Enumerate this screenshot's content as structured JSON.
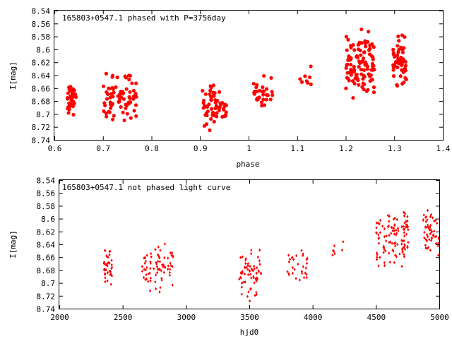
{
  "chart_data": [
    {
      "type": "scatter",
      "title": "165803+0547.1 phased with P=3756day",
      "xlabel": "phase",
      "ylabel": "I[mag]",
      "xlim": [
        0.6,
        1.4
      ],
      "ylim": [
        8.54,
        8.74
      ],
      "y_inverted": true,
      "xticks": [
        "0.6",
        "0.7",
        "0.8",
        "0.9",
        "1",
        "1.1",
        "1.2",
        "1.3",
        "1.4"
      ],
      "yticks": [
        "8.54",
        "8.56",
        "8.58",
        "8.6",
        "8.62",
        "8.64",
        "8.66",
        "8.68",
        "8.7",
        "8.72",
        "8.74"
      ],
      "color": "#ff0000",
      "marker": "filled-circle",
      "clusters": [
        {
          "x_range": [
            0.625,
            0.645
          ],
          "y_range": [
            8.64,
            8.71
          ],
          "n": 40
        },
        {
          "x_range": [
            0.7,
            0.77
          ],
          "y_range": [
            8.625,
            8.725
          ],
          "n": 75
        },
        {
          "x_range": [
            0.905,
            0.935
          ],
          "y_range": [
            8.635,
            8.735
          ],
          "n": 45
        },
        {
          "x_range": [
            0.935,
            0.955
          ],
          "y_range": [
            8.66,
            8.72
          ],
          "n": 20
        },
        {
          "x_range": [
            1.01,
            1.05
          ],
          "y_range": [
            8.635,
            8.71
          ],
          "n": 30
        },
        {
          "x_range": [
            1.105,
            1.13
          ],
          "y_range": [
            8.61,
            8.675
          ],
          "n": 8
        },
        {
          "x_range": [
            1.2,
            1.26
          ],
          "y_range": [
            8.56,
            8.69
          ],
          "n": 110
        },
        {
          "x_range": [
            1.295,
            1.325
          ],
          "y_range": [
            8.565,
            8.675
          ],
          "n": 55
        }
      ]
    },
    {
      "type": "scatter",
      "title": "165803+0547.1 not phased light curve",
      "xlabel": "hjd0",
      "ylabel": "I[mag]",
      "xlim": [
        2000,
        5000
      ],
      "ylim": [
        8.54,
        8.74
      ],
      "y_inverted": true,
      "xticks": [
        "2000",
        "2500",
        "3000",
        "3500",
        "4000",
        "4500",
        "5000"
      ],
      "yticks": [
        "8.54",
        "8.56",
        "8.58",
        "8.6",
        "8.62",
        "8.64",
        "8.66",
        "8.68",
        "8.7",
        "8.72",
        "8.74"
      ],
      "color": "#ff0000",
      "marker": "small-diamond",
      "clusters": [
        {
          "x_range": [
            2350,
            2420
          ],
          "y_range": [
            8.64,
            8.71
          ],
          "n": 40
        },
        {
          "x_range": [
            2650,
            2900
          ],
          "y_range": [
            8.625,
            8.725
          ],
          "n": 75
        },
        {
          "x_range": [
            3420,
            3600
          ],
          "y_range": [
            8.635,
            8.735
          ],
          "n": 65
        },
        {
          "x_range": [
            3800,
            3960
          ],
          "y_range": [
            8.635,
            8.71
          ],
          "n": 30
        },
        {
          "x_range": [
            4150,
            4260
          ],
          "y_range": [
            8.61,
            8.675
          ],
          "n": 8
        },
        {
          "x_range": [
            4500,
            4760
          ],
          "y_range": [
            8.56,
            8.69
          ],
          "n": 110
        },
        {
          "x_range": [
            4870,
            5000
          ],
          "y_range": [
            8.565,
            8.675
          ],
          "n": 55
        }
      ]
    }
  ]
}
